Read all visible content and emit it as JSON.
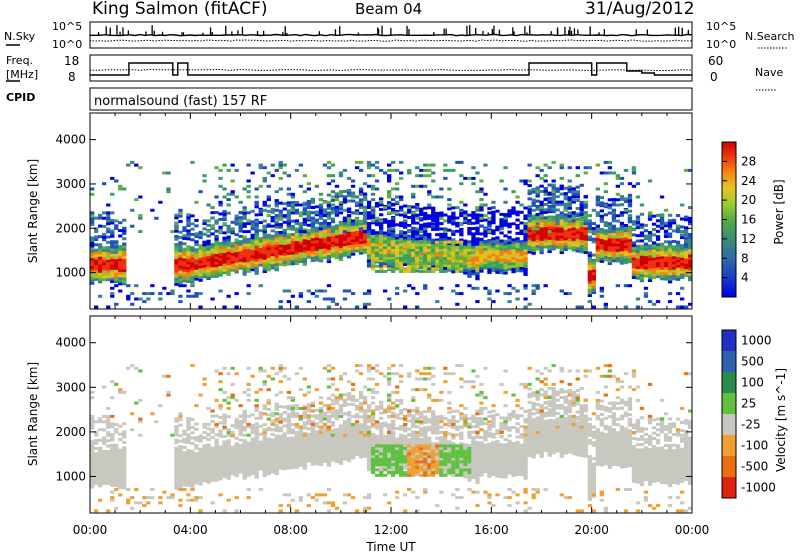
{
  "header": {
    "station": "King Salmon (fitACF)",
    "beam": "Beam 04",
    "date": "31/Aug/2012"
  },
  "strips": {
    "nsky_label": "N.Sky",
    "nsky_ticks": [
      "10^5",
      "10^0"
    ],
    "nsearch_label": "N.Search",
    "nsearch_ticks": [
      "10^5",
      "10^0"
    ],
    "freq_label_line1": "Freq.",
    "freq_label_line2": "[MHz]",
    "freq_ticks": [
      "18",
      "8"
    ],
    "nave_label": "Nave",
    "nave_ticks": [
      "60",
      "0"
    ],
    "cpid_label": "CPID",
    "cpid_value": "normalsound (fast) 157 RF"
  },
  "chart_data": [
    {
      "type": "heatmap",
      "panel": "power",
      "xlabel": "Time UT",
      "ylabel": "Slant Range [km]",
      "x_ticks": [
        "00:00",
        "04:00",
        "08:00",
        "12:00",
        "16:00",
        "20:00",
        "00:00"
      ],
      "xlim_hours": [
        0,
        24
      ],
      "y_ticks": [
        1000,
        2000,
        3000,
        4000
      ],
      "ylim_km": [
        180,
        4600
      ],
      "colorbar": {
        "label": "Power [dB]",
        "ticks": [
          4,
          8,
          12,
          16,
          20,
          24,
          28
        ],
        "range": [
          0,
          32
        ]
      }
    },
    {
      "type": "heatmap",
      "panel": "velocity",
      "xlabel": "Time UT",
      "ylabel": "Slant Range [km]",
      "x_ticks": [
        "00:00",
        "04:00",
        "08:00",
        "12:00",
        "16:00",
        "20:00",
        "00:00"
      ],
      "xlim_hours": [
        0,
        24
      ],
      "y_ticks": [
        1000,
        2000,
        3000,
        4000
      ],
      "ylim_km": [
        180,
        4600
      ],
      "colorbar": {
        "label": "Velocity [m s^-1]",
        "ticks": [
          "1000",
          "500",
          "100",
          "25",
          "-25",
          "-100",
          "-500",
          "-1000"
        ],
        "colors": [
          "#2030c0",
          "#3060b0",
          "#2a8a4a",
          "#60c040",
          "#c8c8c0",
          "#f0a030",
          "#e87010",
          "#e02010"
        ]
      }
    }
  ],
  "colors": {
    "power_scale": [
      "#0000e0",
      "#2050c0",
      "#3a8090",
      "#3aa060",
      "#60b040",
      "#a0c030",
      "#e0c020",
      "#f08010",
      "#f03010",
      "#d00000"
    ],
    "ground_scatter": "#c8c8c0"
  }
}
